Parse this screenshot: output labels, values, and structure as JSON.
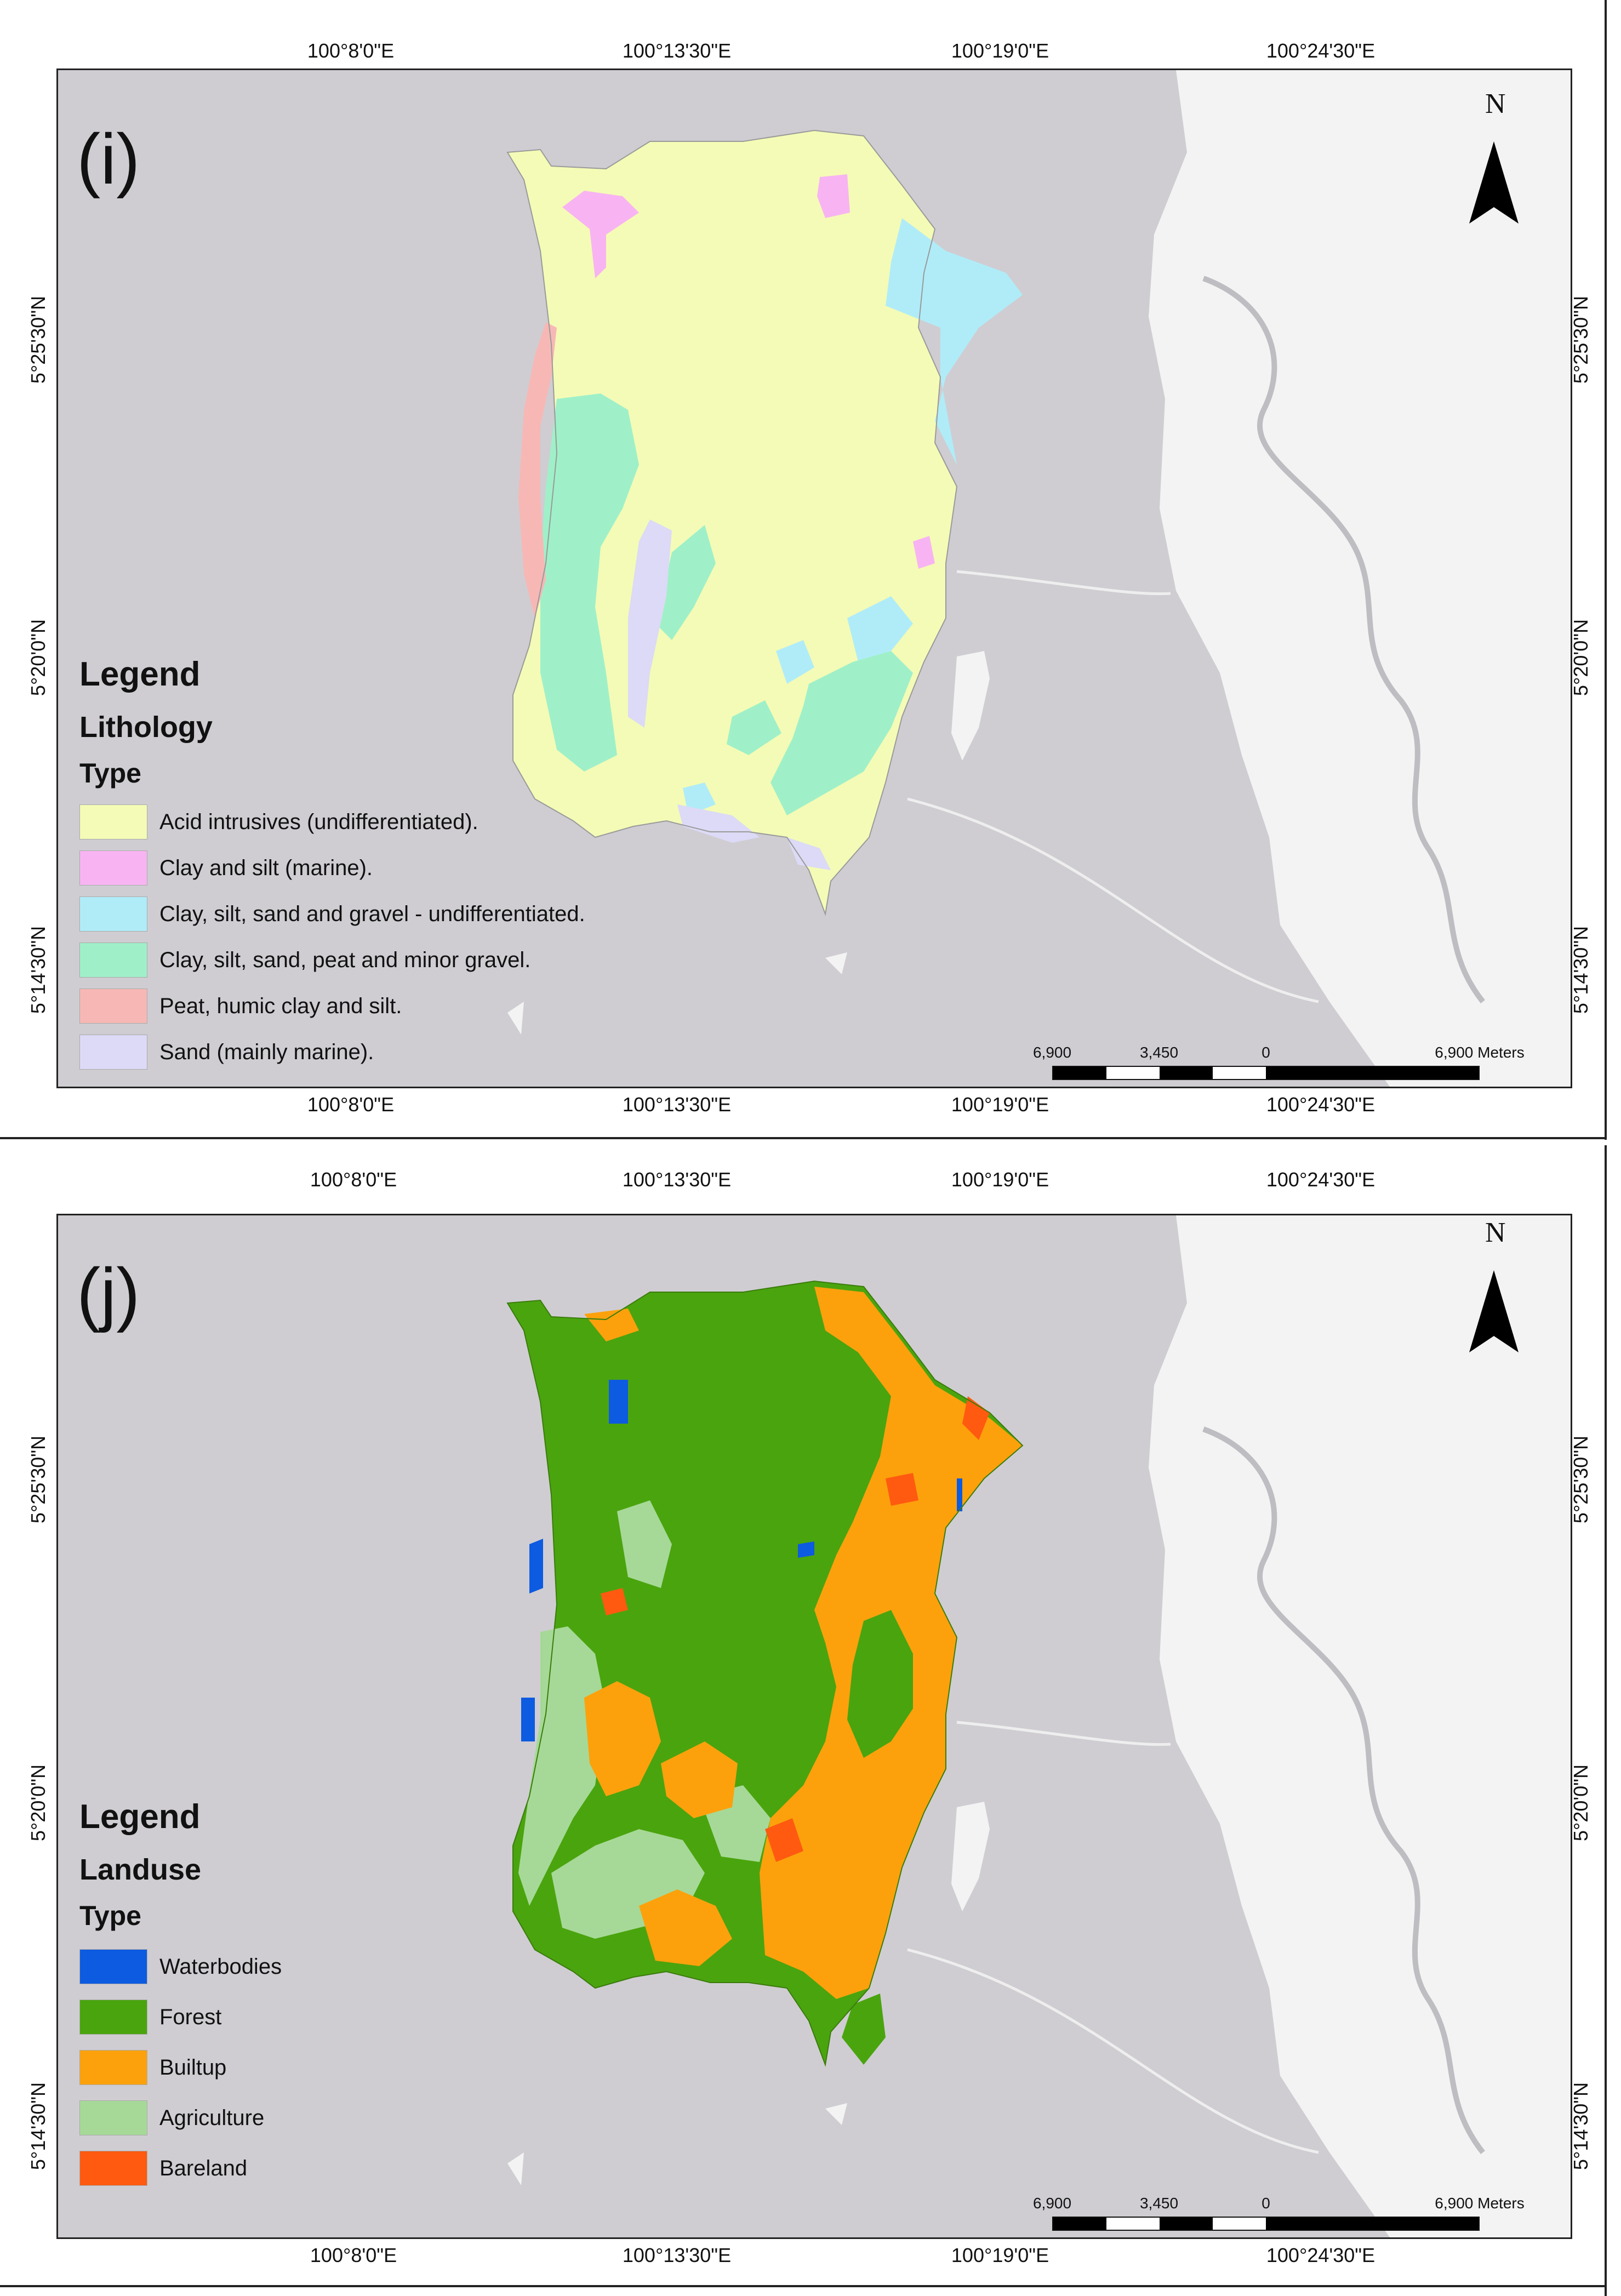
{
  "panels": [
    {
      "label": "(i)",
      "legend_title": "Legend",
      "legend_subtitle": "Lithology",
      "legend_type": "Type",
      "legend_items": [
        {
          "label": "Acid intrusives (undifferentiated).",
          "color": "#f4fbb6"
        },
        {
          "label": "Clay and silt (marine).",
          "color": "#f8b4f2"
        },
        {
          "label": "Clay, silt, sand and gravel - undifferentiated.",
          "color": "#b0ecf8"
        },
        {
          "label": "Clay, silt, sand, peat and minor gravel.",
          "color": "#9ff0c8"
        },
        {
          "label": "Peat, humic clay and silt.",
          "color": "#f7b8b5"
        },
        {
          "label": "Sand (mainly marine).",
          "color": "#dcdaf6"
        }
      ]
    },
    {
      "label": "(j)",
      "legend_title": "Legend",
      "legend_subtitle": "Landuse",
      "legend_type": "Type",
      "legend_items": [
        {
          "label": "Waterbodies",
          "color": "#0d5be0"
        },
        {
          "label": "Forest",
          "color": "#4aa40e"
        },
        {
          "label": "Builtup",
          "color": "#fca10c"
        },
        {
          "label": "Agriculture",
          "color": "#a6d997"
        },
        {
          "label": "Bareland",
          "color": "#ff5a10"
        }
      ]
    }
  ],
  "graticule": {
    "longitudes": [
      "100°8'0\"E",
      "100°13'30\"E",
      "100°19'0\"E",
      "100°24'30\"E"
    ],
    "latitudes": [
      "5°25'30\"N",
      "5°20'0\"N",
      "5°14'30\"N"
    ]
  },
  "north_arrow": {
    "label": "N"
  },
  "scale_bar": {
    "labels": [
      "6,900",
      "3,450",
      "0",
      "6,900 Meters"
    ]
  },
  "colors": {
    "sea": "#cfcdd2",
    "mainland": "#f3f3f3",
    "frame": "#222222"
  }
}
